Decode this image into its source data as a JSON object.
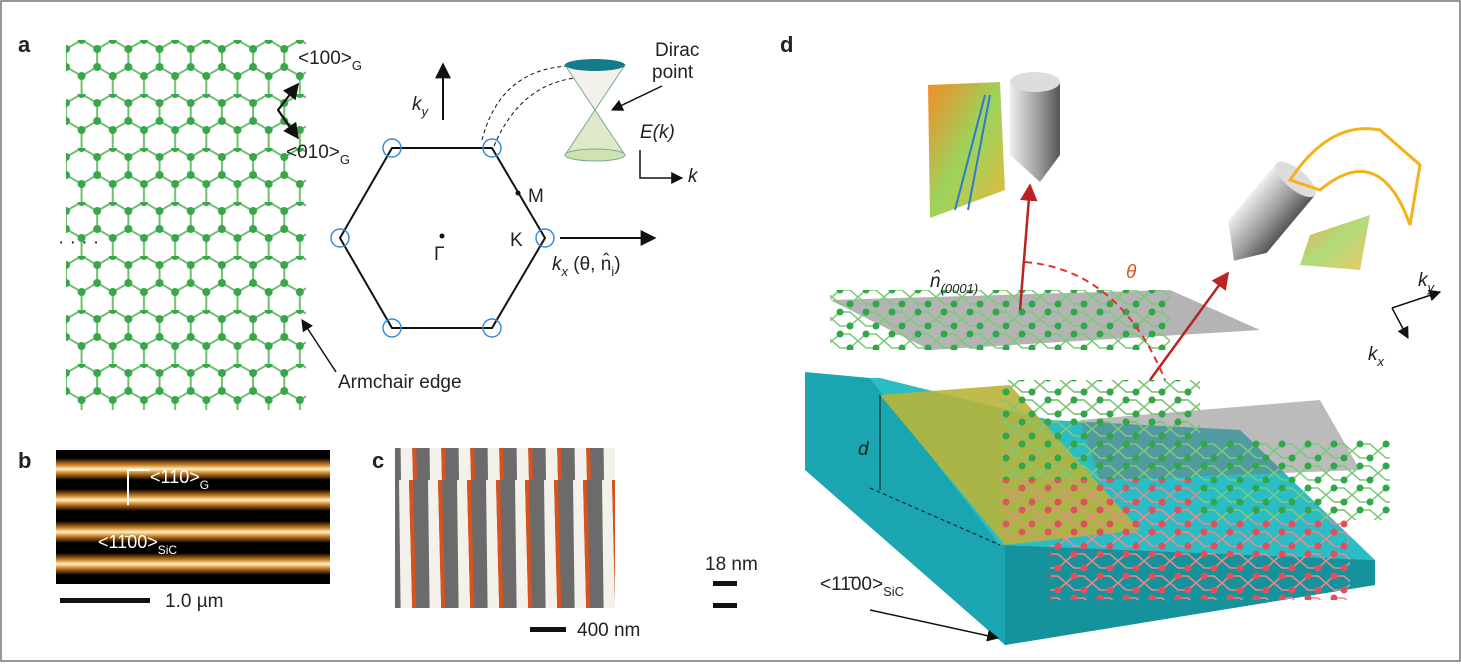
{
  "panel_a": {
    "label": "a",
    "dir_100": {
      "text": "<100>",
      "sub": "G"
    },
    "dir_010": {
      "text": "<010>",
      "sub": "G"
    },
    "ky": {
      "text": "k",
      "sub": "y"
    },
    "dirac": [
      "Dirac",
      "point"
    ],
    "energy": "E(k)",
    "k": "k",
    "M": "M",
    "K": "K",
    "Gamma": "Γ",
    "kx": {
      "text": "k",
      "sub": "x",
      "rest": " (θ,  n̂",
      "sub2": "i",
      "end": ")"
    },
    "edge": "Armchair edge",
    "dots": "· · · ·"
  },
  "panel_b": {
    "label": "b",
    "dir_110": {
      "text": "<110>",
      "sub": "G"
    },
    "dir_sic": {
      "text": "<11̄00>",
      "sub": "SiC"
    },
    "scale": "1.0 µm"
  },
  "panel_c": {
    "label": "c",
    "height": "18 nm",
    "scale": "400 nm"
  },
  "panel_d": {
    "label": "d",
    "normal": {
      "text": "n̂",
      "sub": "(0001)"
    },
    "theta": "θ",
    "ky": {
      "text": "k",
      "sub": "y"
    },
    "kx": {
      "text": "k",
      "sub": "x"
    },
    "depth": "d",
    "dir_sic": {
      "text": "<11̄00>",
      "sub": "SiC"
    }
  }
}
